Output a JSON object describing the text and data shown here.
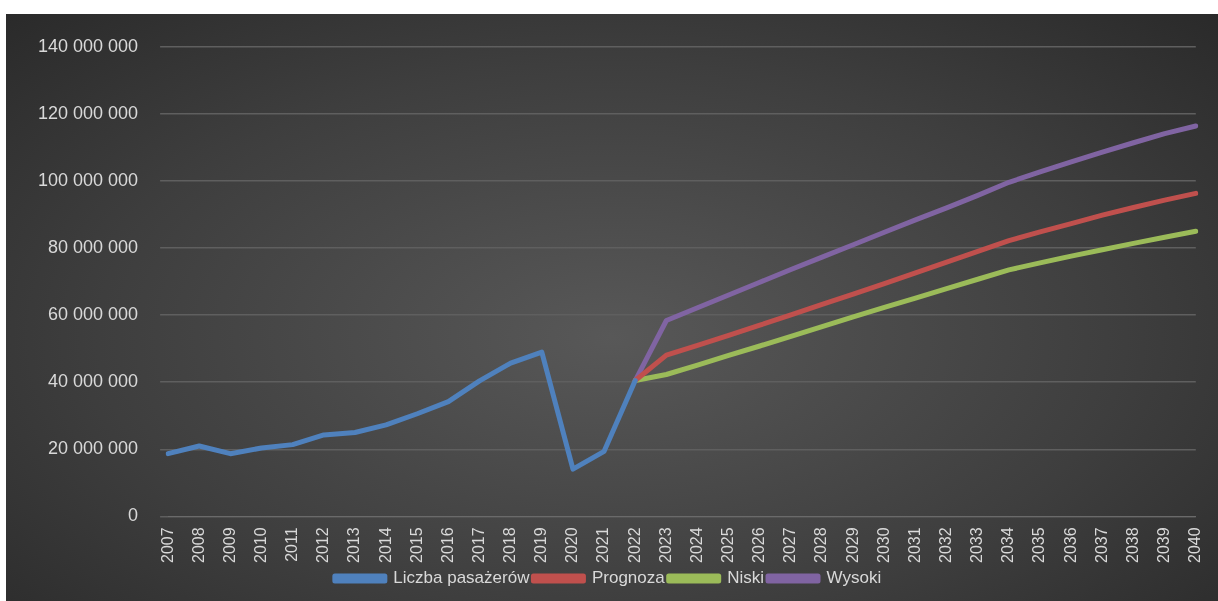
{
  "chart_data": {
    "type": "line",
    "categories": [
      "2007",
      "2008",
      "2009",
      "2010",
      "2011",
      "2012",
      "2013",
      "2014",
      "2015",
      "2016",
      "2017",
      "2018",
      "2019",
      "2020",
      "2021",
      "2022",
      "2023",
      "2024",
      "2025",
      "2026",
      "2027",
      "2028",
      "2029",
      "2030",
      "2031",
      "2032",
      "2033",
      "2034",
      "2035",
      "2036",
      "2037",
      "2038",
      "2039",
      "2040"
    ],
    "series": [
      {
        "name": "Liczba pasażerów",
        "color": "#4f81bd",
        "values": [
          18700000,
          21000000,
          18700000,
          20400000,
          21400000,
          24300000,
          25000000,
          27300000,
          30600000,
          34200000,
          40400000,
          45700000,
          49000000,
          14100000,
          19400000,
          40500000,
          null,
          null,
          null,
          null,
          null,
          null,
          null,
          null,
          null,
          null,
          null,
          null,
          null,
          null,
          null,
          null,
          null,
          null
        ]
      },
      {
        "name": "Prognoza",
        "color": "#c0504d",
        "values": [
          null,
          null,
          null,
          null,
          null,
          null,
          null,
          null,
          null,
          null,
          null,
          null,
          null,
          null,
          null,
          40500000,
          48100000,
          51000000,
          54000000,
          57000000,
          60100000,
          63200000,
          66300000,
          69400000,
          72600000,
          75800000,
          79000000,
          82200000,
          84800000,
          87300000,
          89800000,
          92100000,
          94300000,
          96300000
        ]
      },
      {
        "name": "Niski",
        "color": "#9bbb59",
        "values": [
          null,
          null,
          null,
          null,
          null,
          null,
          null,
          null,
          null,
          null,
          null,
          null,
          null,
          null,
          null,
          40500000,
          42300000,
          45100000,
          48000000,
          50800000,
          53700000,
          56600000,
          59500000,
          62300000,
          65100000,
          67900000,
          70700000,
          73500000,
          75600000,
          77600000,
          79500000,
          81400000,
          83200000,
          85000000
        ]
      },
      {
        "name": "Wysoki",
        "color": "#8064a2",
        "values": [
          null,
          null,
          null,
          null,
          null,
          null,
          null,
          null,
          null,
          null,
          null,
          null,
          null,
          null,
          null,
          40500000,
          58400000,
          62200000,
          66000000,
          69800000,
          73600000,
          77300000,
          81000000,
          84700000,
          88400000,
          92000000,
          95700000,
          99600000,
          102700000,
          105700000,
          108600000,
          111400000,
          114100000,
          116400000
        ]
      }
    ],
    "ylim": [
      0,
      140000000
    ],
    "yticks": [
      0,
      20000000,
      40000000,
      60000000,
      80000000,
      100000000,
      120000000,
      140000000
    ],
    "grid": "y",
    "legend": "bottom",
    "marker": "none",
    "line_style": "solid"
  }
}
